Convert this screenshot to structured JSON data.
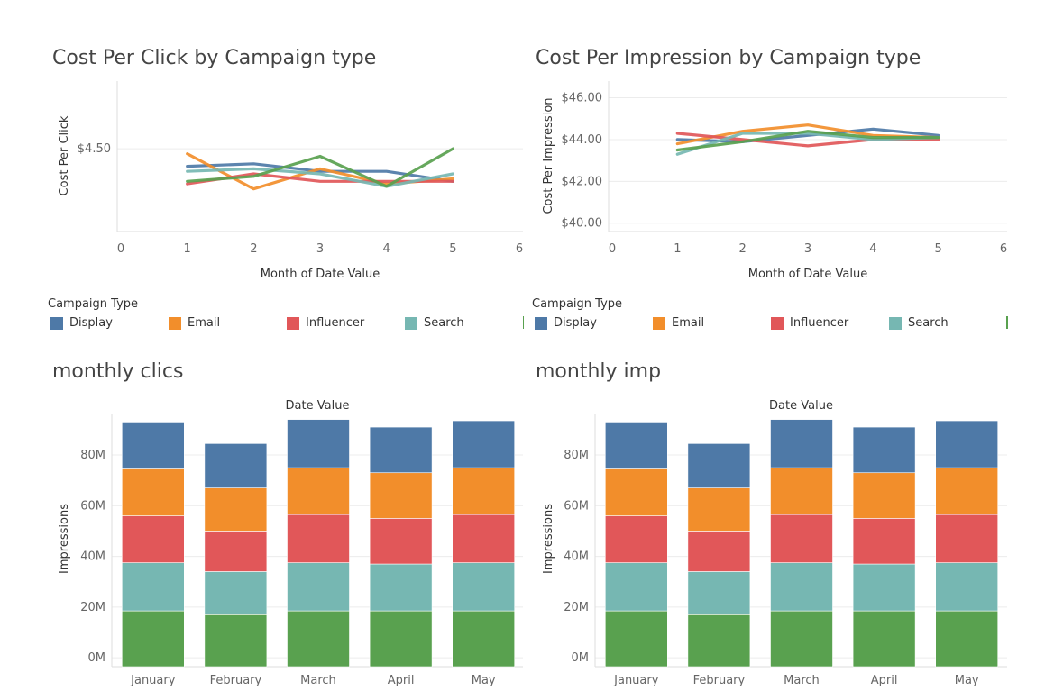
{
  "colors": {
    "Display": "#4e79a7",
    "Email": "#f28e2b",
    "Influencer": "#e15759",
    "Search": "#76b7b2",
    "Social": "#59a14f",
    "grid": "#ececec",
    "axis": "#dddddd"
  },
  "legend": {
    "title": "Campaign Type",
    "items": [
      "Display",
      "Email",
      "Influencer",
      "Search"
    ]
  },
  "chart_data": [
    {
      "id": "cpc",
      "type": "line",
      "title": "Cost Per Click by Campaign type",
      "xlabel": "Month of Date Value",
      "ylabel": "Cost Per Click",
      "xlim": [
        0,
        6
      ],
      "ylim": [
        4.17,
        4.77
      ],
      "xticks": [
        0,
        1,
        2,
        3,
        4,
        5,
        6
      ],
      "yticks": [
        4.5
      ],
      "ytick_labels": [
        "$4.50"
      ],
      "x": [
        1,
        2,
        3,
        4,
        5
      ],
      "series": [
        {
          "name": "Display",
          "values": [
            4.43,
            4.44,
            4.41,
            4.41,
            4.37
          ]
        },
        {
          "name": "Email",
          "values": [
            4.48,
            4.34,
            4.42,
            4.36,
            4.38
          ]
        },
        {
          "name": "Influencer",
          "values": [
            4.36,
            4.4,
            4.37,
            4.37,
            4.37
          ]
        },
        {
          "name": "Search",
          "values": [
            4.41,
            4.42,
            4.4,
            4.35,
            4.4
          ]
        },
        {
          "values": [
            4.37,
            4.39,
            4.47,
            4.35,
            4.5
          ]
        }
      ]
    },
    {
      "id": "cpi",
      "type": "line",
      "title": "Cost Per Impression by Campaign type",
      "xlabel": "Month of Date Value",
      "ylabel": "Cost Per Impression",
      "xlim": [
        0,
        6
      ],
      "ylim": [
        39.6,
        46.8
      ],
      "xticks": [
        0,
        1,
        2,
        3,
        4,
        5,
        6
      ],
      "yticks": [
        40,
        42,
        44,
        46
      ],
      "ytick_labels": [
        "$40.00",
        "$42.00",
        "$44.00",
        "$46.00"
      ],
      "x": [
        1,
        2,
        3,
        4,
        5
      ],
      "series": [
        {
          "name": "Display",
          "values": [
            44.0,
            43.9,
            44.2,
            44.5,
            44.2
          ]
        },
        {
          "name": "Email",
          "values": [
            43.8,
            44.4,
            44.7,
            44.2,
            44.1
          ]
        },
        {
          "name": "Influencer",
          "values": [
            44.3,
            44.0,
            43.7,
            44.0,
            44.0
          ]
        },
        {
          "name": "Search",
          "values": [
            43.3,
            44.3,
            44.3,
            44.0,
            44.1
          ]
        },
        {
          "values": [
            43.5,
            43.9,
            44.4,
            44.1,
            44.1
          ]
        }
      ]
    },
    {
      "id": "clics",
      "type": "bar",
      "stacked": true,
      "title": "monthly clics",
      "column_title": "Date Value",
      "ylabel": "Impressions",
      "ylim": [
        -3.5,
        96
      ],
      "yticks": [
        0,
        20,
        40,
        60,
        80
      ],
      "ytick_labels": [
        "0M",
        "20M",
        "40M",
        "60M",
        "80M"
      ],
      "categories": [
        "January",
        "February",
        "March",
        "April",
        "May"
      ],
      "series": [
        {
          "values": [
            18.5,
            17,
            18.5,
            18.5,
            18.5
          ]
        },
        {
          "name": "Search",
          "values": [
            19,
            17,
            19,
            18.5,
            19
          ]
        },
        {
          "name": "Influencer",
          "values": [
            18.5,
            16,
            19,
            18,
            19
          ]
        },
        {
          "name": "Email",
          "values": [
            18.5,
            17,
            18.5,
            18,
            18.5
          ]
        },
        {
          "name": "Display",
          "values": [
            18.5,
            17.5,
            19,
            18,
            18.5
          ]
        }
      ]
    },
    {
      "id": "imp",
      "type": "bar",
      "stacked": true,
      "title": "monthly imp",
      "column_title": "Date Value",
      "ylabel": "Impressions",
      "ylim": [
        -3.5,
        96
      ],
      "yticks": [
        0,
        20,
        40,
        60,
        80
      ],
      "ytick_labels": [
        "0M",
        "20M",
        "40M",
        "60M",
        "80M"
      ],
      "categories": [
        "January",
        "February",
        "March",
        "April",
        "May"
      ],
      "series": [
        {
          "values": [
            18.5,
            17,
            18.5,
            18.5,
            18.5
          ]
        },
        {
          "name": "Search",
          "values": [
            19,
            17,
            19,
            18.5,
            19
          ]
        },
        {
          "name": "Influencer",
          "values": [
            18.5,
            16,
            19,
            18,
            19
          ]
        },
        {
          "name": "Email",
          "values": [
            18.5,
            17,
            18.5,
            18,
            18.5
          ]
        },
        {
          "name": "Display",
          "values": [
            18.5,
            17.5,
            19,
            18,
            18.5
          ]
        }
      ]
    }
  ]
}
